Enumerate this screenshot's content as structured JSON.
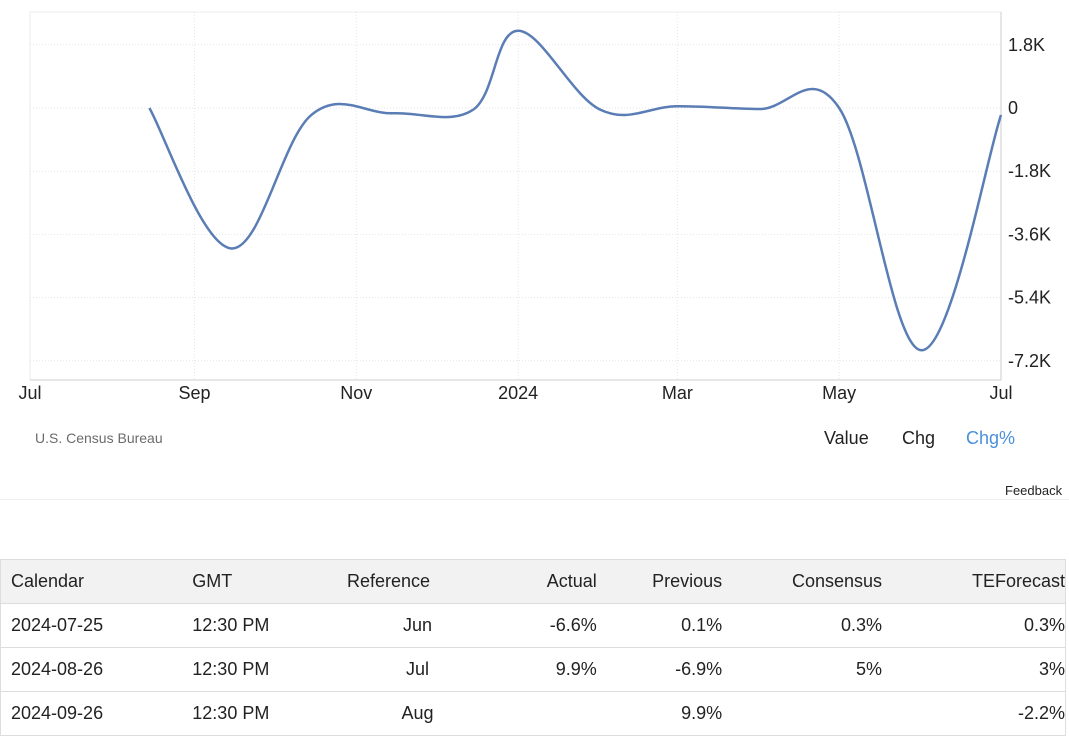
{
  "chart_data": {
    "type": "line",
    "title": "",
    "xlabel": "",
    "ylabel": "",
    "x_ticks": [
      "Jul",
      "Sep",
      "Nov",
      "2024",
      "Mar",
      "May",
      "Jul"
    ],
    "y_ticks": [
      "1.8K",
      "0",
      "-1.8K",
      "-3.6K",
      "-5.4K",
      "-7.2K"
    ],
    "ylim": [
      -7200,
      1800
    ],
    "series": [
      {
        "x": [
          "2023-08-15",
          "2023-09-15",
          "2023-10-15",
          "2023-11-15",
          "2023-12-15",
          "2024-01-01",
          "2024-02-01",
          "2024-03-01",
          "2024-04-01",
          "2024-05-01",
          "2024-06-01",
          "2024-07-01"
        ],
        "values": [
          0,
          -4000,
          -200,
          -150,
          -50,
          2200,
          -50,
          50,
          -30,
          0,
          -6900,
          -200
        ],
        "color": "#5b7db5"
      }
    ],
    "grid": true,
    "y_axis_position": "right"
  },
  "source": "U.S. Census Bureau",
  "modes": [
    {
      "label": "Value",
      "active": false
    },
    {
      "label": "Chg",
      "active": false
    },
    {
      "label": "Chg%",
      "active": true
    }
  ],
  "feedback": "Feedback",
  "table": {
    "headers": {
      "calendar": "Calendar",
      "gmt": "GMT",
      "reference": "Reference",
      "actual": "Actual",
      "previous": "Previous",
      "consensus": "Consensus",
      "teforecast": "TEForecast"
    },
    "rows": [
      {
        "calendar": "2024-07-25",
        "gmt": "12:30 PM",
        "reference": "Jun",
        "actual": "-6.6%",
        "previous": "0.1%",
        "consensus": "0.3%",
        "teforecast": "0.3%"
      },
      {
        "calendar": "2024-08-26",
        "gmt": "12:30 PM",
        "reference": "Jul",
        "actual": "9.9%",
        "previous": "-6.9%",
        "consensus": "5%",
        "teforecast": "3%"
      },
      {
        "calendar": "2024-09-26",
        "gmt": "12:30 PM",
        "reference": "Aug",
        "actual": "",
        "previous": "9.9%",
        "consensus": "",
        "teforecast": "-2.2%"
      }
    ]
  }
}
